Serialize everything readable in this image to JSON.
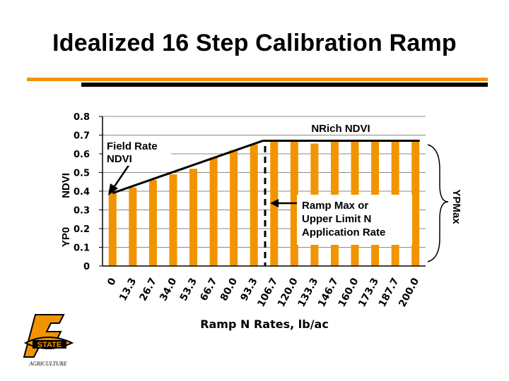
{
  "slide": {
    "title": "Idealized 16 Step Calibration Ramp"
  },
  "chart_data": {
    "type": "bar",
    "title": "",
    "xlabel": "Ramp N Rates, lb/ac",
    "ylabel": "NDVI",
    "ylabel_lower": "YP0",
    "right_label": "YPMax",
    "ylim": [
      0,
      0.8
    ],
    "yticks": [
      "0",
      "0.1",
      "0.2",
      "0.3",
      "0.4",
      "0.5",
      "0.6",
      "0.7",
      "0.8"
    ],
    "categories": [
      "0",
      "13.3",
      "26.7",
      "34.0",
      "53.3",
      "66.7",
      "80.0",
      "93.3",
      "106.7",
      "120.0",
      "133.3",
      "146.7",
      "160.0",
      "173.3",
      "187.7",
      "200.0"
    ],
    "values": [
      0.39,
      0.42,
      0.46,
      0.49,
      0.52,
      0.58,
      0.62,
      0.65,
      0.67,
      0.67,
      0.655,
      0.67,
      0.665,
      0.67,
      0.665,
      0.665
    ],
    "bar_color": "#f29400",
    "grid": "horizontal",
    "annotations": {
      "nrich": "NRich NDVI",
      "field_rate": "Field Rate NDVI",
      "ramp_max": "Ramp Max or Upper Limit N Application Rate"
    }
  },
  "logo": {
    "text": "STATE",
    "subtext": "AGRICULTURE",
    "icon": "osu-logo-icon"
  }
}
